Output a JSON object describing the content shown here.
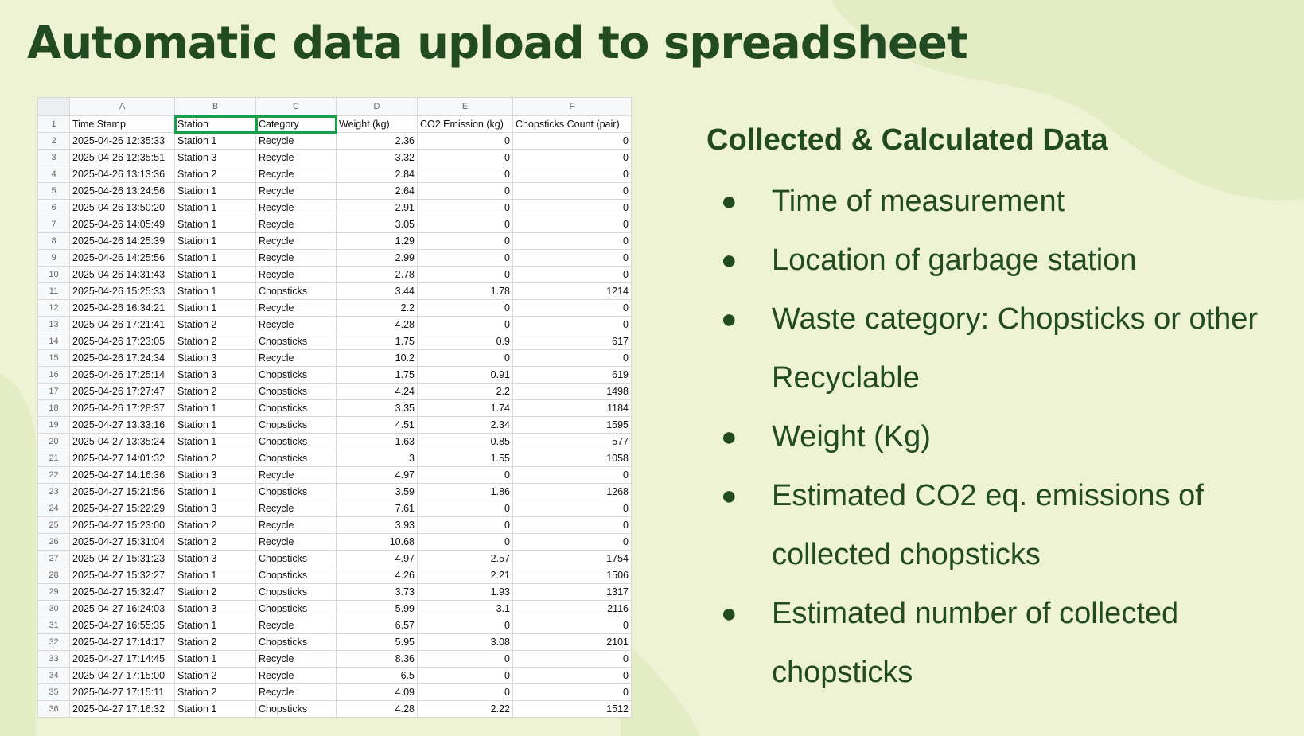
{
  "slide": {
    "title": "Automatic data upload to spreadsheet",
    "heading": "Collected & Calculated Data",
    "bullet_symbol": "●",
    "bullets": [
      "Time of measurement",
      "Location of garbage station",
      "Waste category: Chopsticks or other Recyclable",
      "Weight (Kg)",
      "Estimated CO2 eq. emissions of collected chopsticks",
      "Estimated number of collected chopsticks"
    ],
    "colors": {
      "background": "#eef3d6",
      "title": "#224a23",
      "selection": "#1a9e49"
    }
  },
  "sheet": {
    "column_letters": [
      "A",
      "B",
      "C",
      "D",
      "E",
      "F"
    ],
    "header_row_number": "1",
    "headers": [
      "Time Stamp",
      "Station",
      "Category",
      "Weight (kg)",
      "CO2 Emission (kg)",
      "Chopsticks Count (pair)"
    ],
    "selected_header_columns": [
      1,
      2
    ],
    "rows": [
      [
        "2",
        "2025-04-26 12:35:33",
        "Station 1",
        "Recycle",
        "2.36",
        "0",
        "0"
      ],
      [
        "3",
        "2025-04-26 12:35:51",
        "Station 3",
        "Recycle",
        "3.32",
        "0",
        "0"
      ],
      [
        "4",
        "2025-04-26 13:13:36",
        "Station 2",
        "Recycle",
        "2.84",
        "0",
        "0"
      ],
      [
        "5",
        "2025-04-26 13:24:56",
        "Station 1",
        "Recycle",
        "2.64",
        "0",
        "0"
      ],
      [
        "6",
        "2025-04-26 13:50:20",
        "Station 1",
        "Recycle",
        "2.91",
        "0",
        "0"
      ],
      [
        "7",
        "2025-04-26 14:05:49",
        "Station 1",
        "Recycle",
        "3.05",
        "0",
        "0"
      ],
      [
        "8",
        "2025-04-26 14:25:39",
        "Station 1",
        "Recycle",
        "1.29",
        "0",
        "0"
      ],
      [
        "9",
        "2025-04-26 14:25:56",
        "Station 1",
        "Recycle",
        "2.99",
        "0",
        "0"
      ],
      [
        "10",
        "2025-04-26 14:31:43",
        "Station 1",
        "Recycle",
        "2.78",
        "0",
        "0"
      ],
      [
        "11",
        "2025-04-26 15:25:33",
        "Station 1",
        "Chopsticks",
        "3.44",
        "1.78",
        "1214"
      ],
      [
        "12",
        "2025-04-26 16:34:21",
        "Station 1",
        "Recycle",
        "2.2",
        "0",
        "0"
      ],
      [
        "13",
        "2025-04-26 17:21:41",
        "Station 2",
        "Recycle",
        "4.28",
        "0",
        "0"
      ],
      [
        "14",
        "2025-04-26 17:23:05",
        "Station 2",
        "Chopsticks",
        "1.75",
        "0.9",
        "617"
      ],
      [
        "15",
        "2025-04-26 17:24:34",
        "Station 3",
        "Recycle",
        "10.2",
        "0",
        "0"
      ],
      [
        "16",
        "2025-04-26 17:25:14",
        "Station 3",
        "Chopsticks",
        "1.75",
        "0.91",
        "619"
      ],
      [
        "17",
        "2025-04-26 17:27:47",
        "Station 2",
        "Chopsticks",
        "4.24",
        "2.2",
        "1498"
      ],
      [
        "18",
        "2025-04-26 17:28:37",
        "Station 1",
        "Chopsticks",
        "3.35",
        "1.74",
        "1184"
      ],
      [
        "19",
        "2025-04-27 13:33:16",
        "Station 1",
        "Chopsticks",
        "4.51",
        "2.34",
        "1595"
      ],
      [
        "20",
        "2025-04-27 13:35:24",
        "Station 1",
        "Chopsticks",
        "1.63",
        "0.85",
        "577"
      ],
      [
        "21",
        "2025-04-27 14:01:32",
        "Station 2",
        "Chopsticks",
        "3",
        "1.55",
        "1058"
      ],
      [
        "22",
        "2025-04-27 14:16:36",
        "Station 3",
        "Recycle",
        "4.97",
        "0",
        "0"
      ],
      [
        "23",
        "2025-04-27 15:21:56",
        "Station 1",
        "Chopsticks",
        "3.59",
        "1.86",
        "1268"
      ],
      [
        "24",
        "2025-04-27 15:22:29",
        "Station 3",
        "Recycle",
        "7.61",
        "0",
        "0"
      ],
      [
        "25",
        "2025-04-27 15:23:00",
        "Station 2",
        "Recycle",
        "3.93",
        "0",
        "0"
      ],
      [
        "26",
        "2025-04-27 15:31:04",
        "Station 2",
        "Recycle",
        "10.68",
        "0",
        "0"
      ],
      [
        "27",
        "2025-04-27 15:31:23",
        "Station 3",
        "Chopsticks",
        "4.97",
        "2.57",
        "1754"
      ],
      [
        "28",
        "2025-04-27 15:32:27",
        "Station 1",
        "Chopsticks",
        "4.26",
        "2.21",
        "1506"
      ],
      [
        "29",
        "2025-04-27 15:32:47",
        "Station 2",
        "Chopsticks",
        "3.73",
        "1.93",
        "1317"
      ],
      [
        "30",
        "2025-04-27 16:24:03",
        "Station 3",
        "Chopsticks",
        "5.99",
        "3.1",
        "2116"
      ],
      [
        "31",
        "2025-04-27 16:55:35",
        "Station 1",
        "Recycle",
        "6.57",
        "0",
        "0"
      ],
      [
        "32",
        "2025-04-27 17:14:17",
        "Station 2",
        "Chopsticks",
        "5.95",
        "3.08",
        "2101"
      ],
      [
        "33",
        "2025-04-27 17:14:45",
        "Station 1",
        "Recycle",
        "8.36",
        "0",
        "0"
      ],
      [
        "34",
        "2025-04-27 17:15:00",
        "Station 2",
        "Recycle",
        "6.5",
        "0",
        "0"
      ],
      [
        "35",
        "2025-04-27 17:15:11",
        "Station 2",
        "Recycle",
        "4.09",
        "0",
        "0"
      ],
      [
        "36",
        "2025-04-27 17:16:32",
        "Station 1",
        "Chopsticks",
        "4.28",
        "2.22",
        "1512"
      ]
    ]
  }
}
